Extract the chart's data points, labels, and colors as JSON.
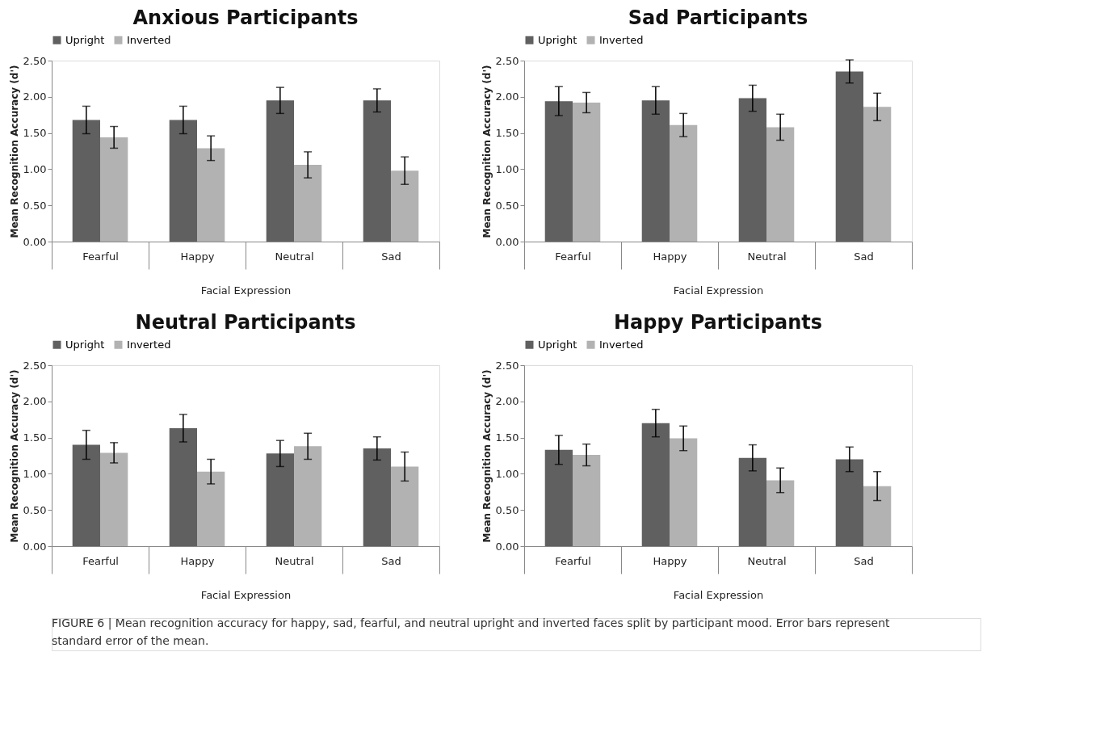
{
  "chart_data": [
    {
      "type": "bar",
      "title": "Anxious Participants",
      "xlabel": "Facial Expression",
      "ylabel": "Mean Recognition Accuracy (d')",
      "categories": [
        "Fearful",
        "Happy",
        "Neutral",
        "Sad"
      ],
      "series": [
        {
          "name": "Upright",
          "color": "#606060",
          "values": [
            1.68,
            1.68,
            1.95,
            1.95
          ],
          "errors": [
            0.19,
            0.19,
            0.18,
            0.16
          ]
        },
        {
          "name": "Inverted",
          "color": "#b2b2b2",
          "values": [
            1.44,
            1.29,
            1.06,
            0.98
          ],
          "errors": [
            0.15,
            0.17,
            0.18,
            0.19
          ]
        }
      ],
      "ylim": [
        0,
        2.5
      ],
      "yticks": [
        {
          "value": 0,
          "label": "0.00"
        },
        {
          "value": 0.5,
          "label": "0.50"
        },
        {
          "value": 1,
          "label": "1.00"
        },
        {
          "value": 1.5,
          "label": "1.50"
        },
        {
          "value": 2,
          "label": "2.00"
        },
        {
          "value": 2.5,
          "label": "2.50"
        }
      ],
      "legend": "top",
      "grid": false
    },
    {
      "type": "bar",
      "title": "Sad Participants",
      "xlabel": "Facial Expression",
      "ylabel": "Mean Recognition Accuracy (d')",
      "categories": [
        "Fearful",
        "Happy",
        "Neutral",
        "Sad"
      ],
      "series": [
        {
          "name": "Upright",
          "color": "#606060",
          "values": [
            1.94,
            1.95,
            1.98,
            2.35
          ],
          "errors": [
            0.2,
            0.19,
            0.18,
            0.16
          ]
        },
        {
          "name": "Inverted",
          "color": "#b2b2b2",
          "values": [
            1.92,
            1.61,
            1.58,
            1.86
          ],
          "errors": [
            0.14,
            0.16,
            0.18,
            0.19
          ]
        }
      ],
      "ylim": [
        0,
        2.5
      ],
      "yticks": [
        {
          "value": 0,
          "label": "0.00"
        },
        {
          "value": 0.5,
          "label": "0.50"
        },
        {
          "value": 1,
          "label": "1.00"
        },
        {
          "value": 1.5,
          "label": "1.50"
        },
        {
          "value": 2,
          "label": "2.00"
        },
        {
          "value": 2.5,
          "label": "2.50"
        }
      ],
      "legend": "top",
      "grid": false
    },
    {
      "type": "bar",
      "title": "Neutral Participants",
      "xlabel": "Facial Expression",
      "ylabel": "Mean Recognition Accuracy (d')",
      "categories": [
        "Fearful",
        "Happy",
        "Neutral",
        "Sad"
      ],
      "series": [
        {
          "name": "Upright",
          "color": "#606060",
          "values": [
            1.4,
            1.63,
            1.28,
            1.35
          ],
          "errors": [
            0.2,
            0.19,
            0.18,
            0.16
          ]
        },
        {
          "name": "Inverted",
          "color": "#b2b2b2",
          "values": [
            1.29,
            1.03,
            1.38,
            1.1
          ],
          "errors": [
            0.14,
            0.17,
            0.18,
            0.2
          ]
        }
      ],
      "ylim": [
        0,
        2.5
      ],
      "yticks": [
        {
          "value": 0,
          "label": "0.00"
        },
        {
          "value": 0.5,
          "label": "0.50"
        },
        {
          "value": 1,
          "label": "1.00"
        },
        {
          "value": 1.5,
          "label": "1.50"
        },
        {
          "value": 2,
          "label": "2.00"
        },
        {
          "value": 2.5,
          "label": "2.50"
        }
      ],
      "legend": "top",
      "grid": false
    },
    {
      "type": "bar",
      "title": "Happy Participants",
      "xlabel": "Facial Expression",
      "ylabel": "Mean Recognition Accuracy (d')",
      "categories": [
        "Fearful",
        "Happy",
        "Neutral",
        "Sad"
      ],
      "series": [
        {
          "name": "Upright",
          "color": "#606060",
          "values": [
            1.33,
            1.7,
            1.22,
            1.2
          ],
          "errors": [
            0.2,
            0.19,
            0.18,
            0.17
          ]
        },
        {
          "name": "Inverted",
          "color": "#b2b2b2",
          "values": [
            1.26,
            1.49,
            0.91,
            0.83
          ],
          "errors": [
            0.15,
            0.17,
            0.17,
            0.2
          ]
        }
      ],
      "ylim": [
        0,
        2.5
      ],
      "yticks": [
        {
          "value": 0,
          "label": "0.00"
        },
        {
          "value": 0.5,
          "label": "0.50"
        },
        {
          "value": 1,
          "label": "1.00"
        },
        {
          "value": 1.5,
          "label": "1.50"
        },
        {
          "value": 2,
          "label": "2.00"
        },
        {
          "value": 2.5,
          "label": "2.50"
        }
      ],
      "legend": "top",
      "grid": false,
      "annotations": [
        "FIGURE 6 | Mean recognition accuracy for happy, sad, fearful, and neutral upright and inverted faces split by participant mood. Error bars represent standard error of the mean."
      ]
    }
  ]
}
